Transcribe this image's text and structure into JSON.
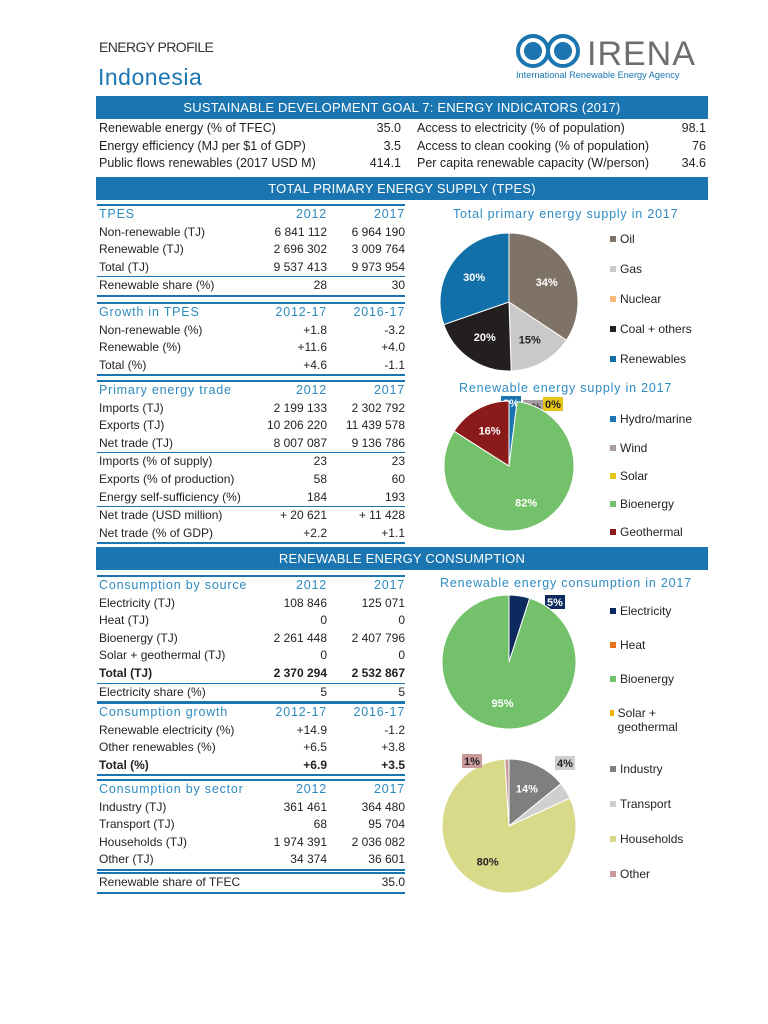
{
  "header": {
    "kicker": "ENERGY PROFILE",
    "country": "Indonesia",
    "logo": {
      "name": "IRENA",
      "tagline": "International Renewable Energy Agency"
    }
  },
  "sdg": {
    "title": "SUSTAINABLE DEVELOPMENT GOAL 7: ENERGY INDICATORS (2017)",
    "left": [
      {
        "label": "Renewable energy (% of TFEC)",
        "value": "35.0"
      },
      {
        "label": "Energy efficiency (MJ per $1 of GDP)",
        "value": "3.5"
      },
      {
        "label": "Public flows renewables (2017 USD M)",
        "value": "414.1"
      }
    ],
    "right": [
      {
        "label": "Access to electricity (% of population)",
        "value": "98.1"
      },
      {
        "label": "Access to clean cooking (% of population)",
        "value": "76"
      },
      {
        "label": "Per capita renewable capacity (W/person)",
        "value": "34.6"
      }
    ]
  },
  "tpes_bar": "TOTAL PRIMARY ENERGY SUPPLY (TPES)",
  "consumption_bar": "RENEWABLE ENERGY CONSUMPTION",
  "tables": [
    {
      "id": "tpes",
      "header": [
        "TPES",
        "2012",
        "2017"
      ],
      "rows": [
        {
          "label": "Non-renewable (TJ)",
          "v1": "6 841 112",
          "v2": "6 964 190"
        },
        {
          "label": "Renewable (TJ)",
          "v1": "2 696 302",
          "v2": "3 009 764"
        },
        {
          "label": "Total (TJ)",
          "v1": "9 537 413",
          "v2": "9 973 954"
        },
        {
          "label": "Renewable share (%)",
          "v1": "28",
          "v2": "30",
          "sep": true
        }
      ]
    },
    {
      "id": "growth-tpes",
      "header": [
        "Growth in TPES",
        "2012-17",
        "2016-17"
      ],
      "rows": [
        {
          "label": "Non-renewable (%)",
          "v1": "+1.8",
          "v2": "-3.2"
        },
        {
          "label": "Renewable (%)",
          "v1": "+11.6",
          "v2": "+4.0"
        },
        {
          "label": "Total (%)",
          "v1": "+4.6",
          "v2": "-1.1"
        }
      ]
    },
    {
      "id": "trade",
      "header": [
        "Primary energy trade",
        "2012",
        "2017"
      ],
      "rows": [
        {
          "label": "Imports (TJ)",
          "v1": "2 199 133",
          "v2": "2 302 792"
        },
        {
          "label": "Exports (TJ)",
          "v1": "10 206 220",
          "v2": "11 439 578"
        },
        {
          "label": "Net trade (TJ)",
          "v1": "8 007 087",
          "v2": "9 136 786"
        },
        {
          "label": "Imports (% of supply)",
          "v1": "23",
          "v2": "23",
          "sep": true
        },
        {
          "label": "Exports (% of production)",
          "v1": "58",
          "v2": "60"
        },
        {
          "label": "Energy self-sufficiency (%)",
          "v1": "184",
          "v2": "193"
        },
        {
          "label": "Net trade (USD million)",
          "v1": "+ 20 621",
          "v2": "+ 11 428",
          "sep": true
        },
        {
          "label": "Net trade (% of GDP)",
          "v1": "+2.2",
          "v2": "+1.1"
        }
      ]
    },
    {
      "id": "cons-source",
      "header": [
        "Consumption by source",
        "2012",
        "2017"
      ],
      "rows": [
        {
          "label": "Electricity (TJ)",
          "v1": "108 846",
          "v2": "125 071"
        },
        {
          "label": "Heat (TJ)",
          "v1": "0",
          "v2": "0"
        },
        {
          "label": "Bioenergy (TJ)",
          "v1": "2 261 448",
          "v2": "2 407 796"
        },
        {
          "label": "Solar + geothermal (TJ)",
          "v1": "0",
          "v2": "0"
        },
        {
          "label": "Total (TJ)",
          "v1": "2 370 294",
          "v2": "2 532 867",
          "bold": true
        },
        {
          "label": "Electricity share (%)",
          "v1": "5",
          "v2": "5",
          "sep": true
        }
      ]
    },
    {
      "id": "cons-growth",
      "header": [
        "Consumption growth",
        "2012-17",
        "2016-17"
      ],
      "rows": [
        {
          "label": "Renewable electricity (%)",
          "v1": "+14.9",
          "v2": "-1.2"
        },
        {
          "label": "Other renewables (%)",
          "v1": "+6.5",
          "v2": "+3.8"
        },
        {
          "label": "Total (%)",
          "v1": "+6.9",
          "v2": "+3.5",
          "bold": true
        }
      ]
    },
    {
      "id": "cons-sector",
      "header": [
        "Consumption by sector",
        "2012",
        "2017"
      ],
      "rows": [
        {
          "label": "Industry (TJ)",
          "v1": "361 461",
          "v2": "364 480"
        },
        {
          "label": "Transport (TJ)",
          "v1": "68",
          "v2": "95 704"
        },
        {
          "label": "Households (TJ)",
          "v1": "1 974 391",
          "v2": "2 036 082"
        },
        {
          "label": "Other (TJ)",
          "v1": "34 374",
          "v2": "36 601"
        }
      ]
    },
    {
      "id": "re-share",
      "rows": [
        {
          "label": "Renewable share of TFEC",
          "v1": "",
          "v2": "35.0"
        }
      ]
    }
  ],
  "chart_data": [
    {
      "type": "pie",
      "title": "Total primary energy supply in 2017",
      "legend": "right",
      "slices": [
        {
          "name": "Oil",
          "value": 34,
          "label": "34%",
          "color": "#7f7368"
        },
        {
          "name": "Gas",
          "value": 15,
          "label": "15%",
          "color": "#c9c9c9"
        },
        {
          "name": "Nuclear",
          "value": 0,
          "label": "",
          "color": "#f9b77a"
        },
        {
          "name": "Coal + others",
          "value": 20,
          "label": "20%",
          "color": "#231f20"
        },
        {
          "name": "Renewables",
          "value": 30,
          "label": "30%",
          "color": "#1170a8"
        }
      ]
    },
    {
      "type": "pie",
      "title": "Renewable energy supply in 2017",
      "legend": "right",
      "slices": [
        {
          "name": "Hydro/marine",
          "value": 2,
          "label": "2%",
          "color": "#1a75b0"
        },
        {
          "name": "Wind",
          "value": 0,
          "label": "0%",
          "color": "#a89da2"
        },
        {
          "name": "Solar",
          "value": 0,
          "label": "0%",
          "color": "#e6c619"
        },
        {
          "name": "Bioenergy",
          "value": 82,
          "label": "82%",
          "color": "#74c16b"
        },
        {
          "name": "Geothermal",
          "value": 16,
          "label": "16%",
          "color": "#8b1a1a"
        }
      ]
    },
    {
      "type": "pie",
      "title": "Renewable energy consumption in 2017",
      "legend": "right",
      "slices": [
        {
          "name": "Electricity",
          "value": 5,
          "label": "5%",
          "color": "#0d2a5e"
        },
        {
          "name": "Heat",
          "value": 0,
          "label": "",
          "color": "#e8731c"
        },
        {
          "name": "Bioenergy",
          "value": 95,
          "label": "95%",
          "color": "#74c16b"
        },
        {
          "name": "Solar + geothermal",
          "value": 0,
          "label": "",
          "color": "#f2b300"
        }
      ]
    },
    {
      "type": "pie",
      "title": "",
      "legend": "right",
      "slices": [
        {
          "name": "Industry",
          "value": 14,
          "label": "14%",
          "color": "#7f7f7f"
        },
        {
          "name": "Transport",
          "value": 4,
          "label": "4%",
          "color": "#cfcfcf"
        },
        {
          "name": "Households",
          "value": 80,
          "label": "80%",
          "color": "#d9d98a"
        },
        {
          "name": "Other",
          "value": 1,
          "label": "1%",
          "color": "#c99a9a"
        }
      ]
    }
  ]
}
